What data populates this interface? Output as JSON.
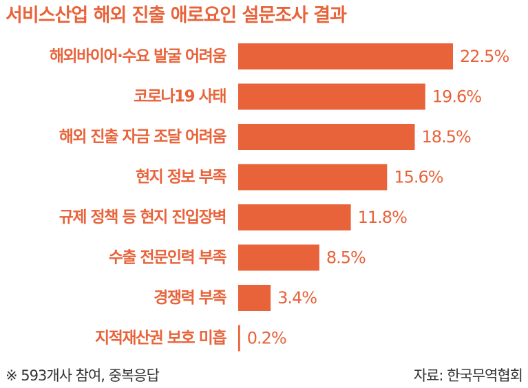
{
  "title": "서비스산업 해외 진출 애로요인 설문조사 결과",
  "footnote": "※ 593개사 참여, 중복응답",
  "source": "자료: 한국무역협회",
  "colors": {
    "bar": "#e8633a",
    "text": "#e8633a",
    "note": "#333333"
  },
  "chart_data": {
    "type": "bar",
    "orientation": "horizontal",
    "title": "서비스산업 해외 진출 애로요인 설문조사 결과",
    "categories": [
      "해외바이어·수요 발굴 어려움",
      "코로나19 사태",
      "해외 진출 자금 조달 어려움",
      "현지 정보 부족",
      "규제 정책 등 현지 진입장벽",
      "수출 전문인력 부족",
      "경쟁력 부족",
      "지적재산권 보호 미흡"
    ],
    "values": [
      22.5,
      19.6,
      18.5,
      15.6,
      11.8,
      8.5,
      3.4,
      0.2
    ],
    "value_labels": [
      "22.5%",
      "19.6%",
      "18.5%",
      "15.6%",
      "11.8%",
      "8.5%",
      "3.4%",
      "0.2%"
    ],
    "unit": "%",
    "xlim": [
      0,
      22.5
    ],
    "grid": false,
    "legend": "none"
  }
}
